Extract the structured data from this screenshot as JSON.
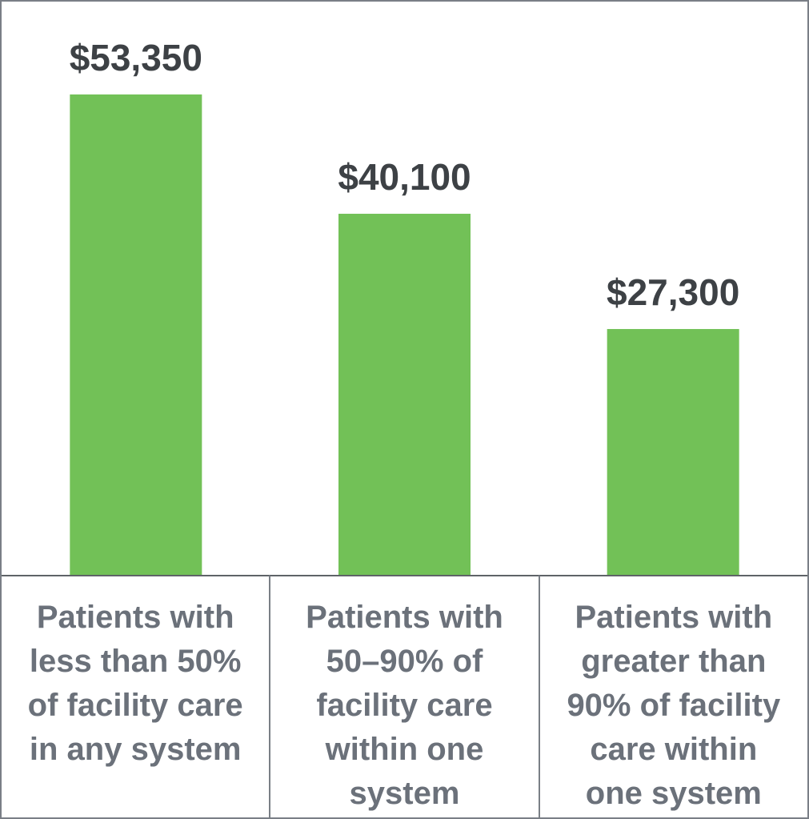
{
  "chart_data": {
    "type": "bar",
    "categories": [
      "Patients with\nless than 50%\nof facility care\nin any system",
      "Patients with\n50–90% of\nfacility care\nwithin one\nsystem",
      "Patients with\ngreater than\n90% of facility\ncare within\none system"
    ],
    "values": [
      53350,
      40100,
      27300
    ],
    "value_labels": [
      "$53,350",
      "$40,100",
      "$27,300"
    ],
    "title": "",
    "xlabel": "",
    "ylabel": "",
    "ylim": [
      0,
      53350
    ],
    "grid": false,
    "legend": "none",
    "colors": {
      "bar": "#72c157",
      "value_label": "#3d4145",
      "category_label": "#6b717a",
      "frame": "#7a7f86"
    }
  }
}
